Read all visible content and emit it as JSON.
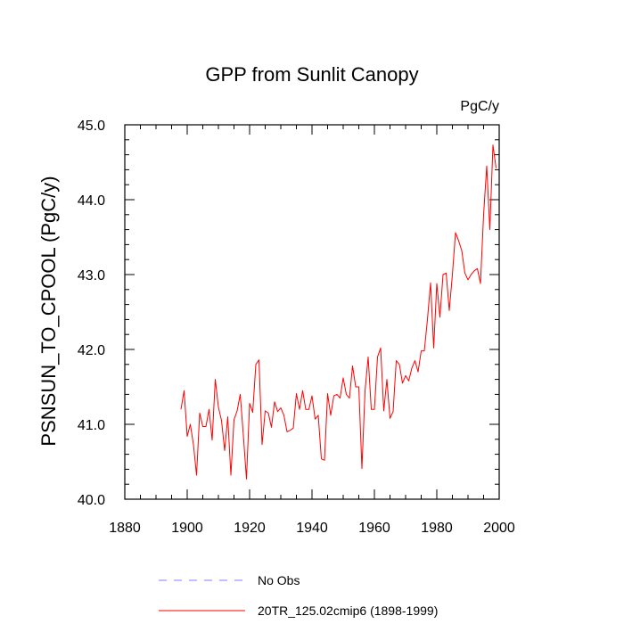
{
  "chart_data": {
    "type": "line",
    "title": "GPP from Sunlit Canopy",
    "units_label": "PgC/y",
    "ylabel": "PSNSUN_TO_CPOOL  (PgC/y)",
    "xlabel": "",
    "xlim": [
      1880,
      2000
    ],
    "ylim": [
      40.0,
      45.0
    ],
    "x_ticks": [
      1880,
      1900,
      1920,
      1940,
      1960,
      1980,
      2000
    ],
    "x_tick_labels": [
      "1880",
      "1900",
      "1920",
      "1940",
      "1960",
      "1980",
      "2000"
    ],
    "y_ticks": [
      40.0,
      41.0,
      42.0,
      43.0,
      44.0,
      45.0
    ],
    "y_tick_labels": [
      "40.0",
      "41.0",
      "42.0",
      "43.0",
      "44.0",
      "45.0"
    ],
    "grid": false,
    "legend_position": "bottom",
    "series": [
      {
        "name": "No Obs",
        "color": "#8080ff",
        "style": "dashed",
        "x": [],
        "values": []
      },
      {
        "name": "20TR_125.02cmip6 (1898-1999)",
        "color": "#ff0000",
        "style": "solid",
        "x": [
          1898,
          1899,
          1900,
          1901,
          1902,
          1903,
          1904,
          1905,
          1906,
          1907,
          1908,
          1909,
          1910,
          1911,
          1912,
          1913,
          1914,
          1915,
          1916,
          1917,
          1918,
          1919,
          1920,
          1921,
          1922,
          1923,
          1924,
          1925,
          1926,
          1927,
          1928,
          1929,
          1930,
          1931,
          1932,
          1933,
          1934,
          1935,
          1936,
          1937,
          1938,
          1939,
          1940,
          1941,
          1942,
          1943,
          1944,
          1945,
          1946,
          1947,
          1948,
          1949,
          1950,
          1951,
          1952,
          1953,
          1954,
          1955,
          1956,
          1957,
          1958,
          1959,
          1960,
          1961,
          1962,
          1963,
          1964,
          1965,
          1966,
          1967,
          1968,
          1969,
          1970,
          1971,
          1972,
          1973,
          1974,
          1975,
          1976,
          1977,
          1978,
          1979,
          1980,
          1981,
          1982,
          1983,
          1984,
          1985,
          1986,
          1987,
          1988,
          1989,
          1990,
          1991,
          1992,
          1993,
          1994,
          1995,
          1996,
          1997,
          1998,
          1999
        ],
        "values": [
          41.2,
          41.45,
          40.84,
          41.0,
          40.73,
          40.32,
          41.15,
          40.97,
          40.97,
          41.2,
          40.79,
          41.6,
          41.23,
          41.05,
          40.65,
          41.1,
          40.32,
          41.06,
          41.18,
          41.4,
          40.85,
          40.27,
          41.28,
          41.16,
          41.8,
          41.86,
          40.73,
          41.18,
          41.15,
          40.96,
          41.3,
          41.17,
          41.22,
          41.12,
          40.9,
          40.92,
          40.95,
          41.41,
          41.2,
          41.45,
          41.2,
          41.2,
          41.38,
          41.07,
          41.12,
          40.54,
          40.52,
          41.41,
          41.12,
          41.38,
          41.4,
          41.35,
          41.62,
          41.4,
          41.35,
          41.78,
          41.5,
          41.5,
          40.41,
          41.45,
          41.9,
          41.2,
          41.2,
          41.9,
          42.02,
          41.18,
          41.6,
          41.08,
          41.17,
          41.85,
          41.8,
          41.55,
          41.65,
          41.58,
          41.75,
          41.85,
          41.7,
          41.98,
          41.98,
          42.4,
          42.89,
          42.02,
          42.88,
          42.43,
          43.0,
          43.02,
          42.52,
          43.0,
          43.56,
          43.45,
          43.32,
          43.02,
          42.93,
          43.0,
          43.05,
          43.08,
          42.88,
          43.8,
          44.45,
          43.6,
          44.73,
          44.42
        ]
      }
    ]
  }
}
